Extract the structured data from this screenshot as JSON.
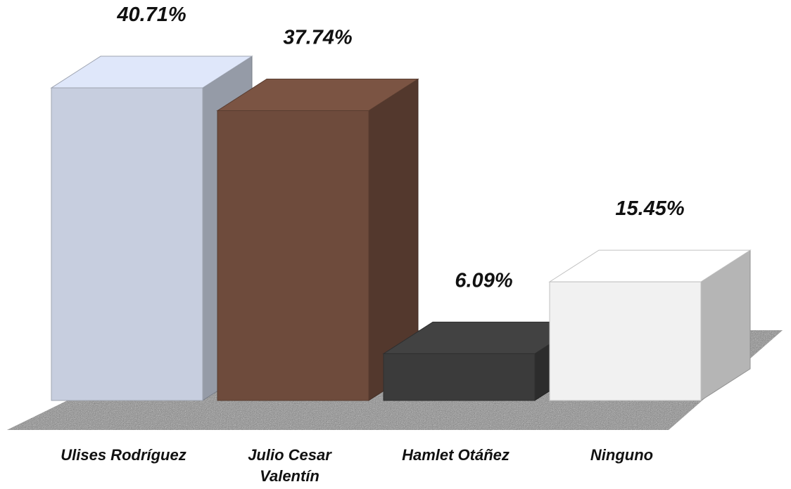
{
  "chart_data": {
    "type": "bar3d",
    "categories": [
      "Ulises Rodríguez",
      "Julio Cesar Valentín",
      "Hamlet Otáñez",
      "Ninguno"
    ],
    "values": [
      40.71,
      37.74,
      6.09,
      15.45
    ],
    "value_labels": [
      "40.71%",
      "37.74%",
      "6.09%",
      "15.45%"
    ],
    "colors": [
      "#c7cedf",
      "#6e4b3c",
      "#3b3b3b",
      "#f1f1f1"
    ]
  }
}
